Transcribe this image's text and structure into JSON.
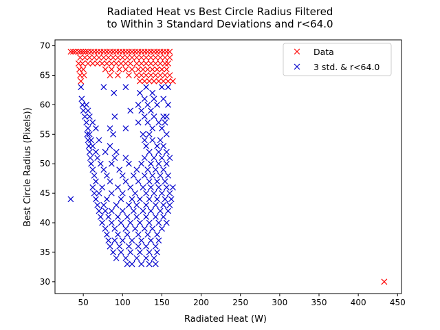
{
  "chart_data": {
    "type": "scatter",
    "title_lines": [
      "Radiated Heat vs Best Circle Radius Filtered",
      "to Within 3 Standard Deviations and r<64.0"
    ],
    "xlabel": "Radiated Heat (W)",
    "ylabel": "Best Circle Radius (Pixels))",
    "xlim": [
      14,
      455
    ],
    "ylim": [
      28,
      71
    ],
    "xticks": [
      50,
      100,
      150,
      200,
      250,
      300,
      350,
      400,
      450
    ],
    "yticks": [
      30,
      35,
      40,
      45,
      50,
      55,
      60,
      65,
      70
    ],
    "grid": false,
    "legend_position": "top-right",
    "marker": "x",
    "series": [
      {
        "name": "Data",
        "color": "#ff0000",
        "points": [
          [
            34,
            69
          ],
          [
            37,
            69
          ],
          [
            40,
            69
          ],
          [
            44,
            69
          ],
          [
            47,
            69
          ],
          [
            50,
            69
          ],
          [
            53,
            69
          ],
          [
            56,
            69
          ],
          [
            60,
            69
          ],
          [
            64,
            69
          ],
          [
            68,
            69
          ],
          [
            72,
            69
          ],
          [
            76,
            69
          ],
          [
            80,
            69
          ],
          [
            84,
            69
          ],
          [
            88,
            69
          ],
          [
            92,
            69
          ],
          [
            96,
            69
          ],
          [
            100,
            69
          ],
          [
            104,
            69
          ],
          [
            108,
            69
          ],
          [
            112,
            69
          ],
          [
            116,
            69
          ],
          [
            120,
            69
          ],
          [
            124,
            69
          ],
          [
            128,
            69
          ],
          [
            132,
            69
          ],
          [
            136,
            69
          ],
          [
            140,
            69
          ],
          [
            144,
            69
          ],
          [
            148,
            69
          ],
          [
            152,
            69
          ],
          [
            156,
            69
          ],
          [
            160,
            69
          ],
          [
            46,
            68
          ],
          [
            52,
            68
          ],
          [
            58,
            68
          ],
          [
            64,
            68
          ],
          [
            70,
            68
          ],
          [
            76,
            68
          ],
          [
            82,
            68
          ],
          [
            88,
            68
          ],
          [
            94,
            68
          ],
          [
            100,
            68
          ],
          [
            106,
            68
          ],
          [
            112,
            68
          ],
          [
            118,
            68
          ],
          [
            124,
            68
          ],
          [
            130,
            68
          ],
          [
            136,
            68
          ],
          [
            142,
            68
          ],
          [
            148,
            68
          ],
          [
            154,
            68
          ],
          [
            160,
            68
          ],
          [
            44,
            67
          ],
          [
            49,
            67
          ],
          [
            56,
            67
          ],
          [
            62,
            67
          ],
          [
            68,
            67
          ],
          [
            74,
            67
          ],
          [
            80,
            67
          ],
          [
            86,
            67
          ],
          [
            92,
            67
          ],
          [
            98,
            67
          ],
          [
            104,
            67
          ],
          [
            110,
            67
          ],
          [
            118,
            67
          ],
          [
            124,
            67
          ],
          [
            130,
            67
          ],
          [
            136,
            67
          ],
          [
            142,
            67
          ],
          [
            148,
            67
          ],
          [
            154,
            67
          ],
          [
            158,
            67
          ],
          [
            45,
            66
          ],
          [
            50,
            66
          ],
          [
            78,
            66
          ],
          [
            86,
            66
          ],
          [
            96,
            66
          ],
          [
            104,
            66
          ],
          [
            112,
            66
          ],
          [
            120,
            66
          ],
          [
            126,
            66
          ],
          [
            132,
            66
          ],
          [
            138,
            66
          ],
          [
            144,
            66
          ],
          [
            150,
            66
          ],
          [
            156,
            66
          ],
          [
            46,
            65
          ],
          [
            51,
            65
          ],
          [
            84,
            65
          ],
          [
            94,
            65
          ],
          [
            108,
            65
          ],
          [
            118,
            65
          ],
          [
            124,
            65
          ],
          [
            130,
            65
          ],
          [
            136,
            65
          ],
          [
            142,
            65
          ],
          [
            148,
            65
          ],
          [
            154,
            65
          ],
          [
            160,
            65
          ],
          [
            47,
            64
          ],
          [
            122,
            64
          ],
          [
            128,
            64
          ],
          [
            134,
            64
          ],
          [
            140,
            64
          ],
          [
            146,
            64
          ],
          [
            152,
            64
          ],
          [
            158,
            64
          ],
          [
            164,
            64
          ],
          [
            433,
            30
          ]
        ]
      },
      {
        "name": "3 std. & r<64.0",
        "color": "#0000cc",
        "points": [
          [
            47,
            63
          ],
          [
            76,
            63
          ],
          [
            104,
            63
          ],
          [
            130,
            63
          ],
          [
            150,
            63
          ],
          [
            158,
            63
          ],
          [
            122,
            62
          ],
          [
            138,
            62
          ],
          [
            89,
            62
          ],
          [
            48,
            61
          ],
          [
            128,
            61
          ],
          [
            140,
            61
          ],
          [
            152,
            61
          ],
          [
            49,
            60
          ],
          [
            54,
            60
          ],
          [
            120,
            60
          ],
          [
            132,
            60
          ],
          [
            144,
            60
          ],
          [
            158,
            60
          ],
          [
            50,
            59
          ],
          [
            56,
            59
          ],
          [
            110,
            59
          ],
          [
            124,
            59
          ],
          [
            136,
            59
          ],
          [
            52,
            58
          ],
          [
            58,
            58
          ],
          [
            90,
            58
          ],
          [
            128,
            58
          ],
          [
            140,
            58
          ],
          [
            152,
            58
          ],
          [
            156,
            58
          ],
          [
            54,
            57
          ],
          [
            62,
            57
          ],
          [
            120,
            57
          ],
          [
            132,
            57
          ],
          [
            146,
            57
          ],
          [
            154,
            57
          ],
          [
            56,
            56
          ],
          [
            66,
            56
          ],
          [
            84,
            56
          ],
          [
            104,
            56
          ],
          [
            138,
            56
          ],
          [
            150,
            56
          ],
          [
            55,
            55
          ],
          [
            58,
            55
          ],
          [
            88,
            55
          ],
          [
            126,
            55
          ],
          [
            134,
            55
          ],
          [
            156,
            55
          ],
          [
            56,
            54
          ],
          [
            60,
            54
          ],
          [
            70,
            54
          ],
          [
            128,
            54
          ],
          [
            138,
            54
          ],
          [
            148,
            54
          ],
          [
            57,
            53
          ],
          [
            62,
            53
          ],
          [
            84,
            53
          ],
          [
            130,
            53
          ],
          [
            144,
            53
          ],
          [
            152,
            53
          ],
          [
            58,
            52
          ],
          [
            66,
            52
          ],
          [
            78,
            52
          ],
          [
            92,
            52
          ],
          [
            134,
            52
          ],
          [
            146,
            52
          ],
          [
            156,
            52
          ],
          [
            59,
            51
          ],
          [
            68,
            51
          ],
          [
            90,
            51
          ],
          [
            104,
            51
          ],
          [
            128,
            51
          ],
          [
            140,
            51
          ],
          [
            150,
            51
          ],
          [
            160,
            51
          ],
          [
            60,
            50
          ],
          [
            72,
            50
          ],
          [
            86,
            50
          ],
          [
            108,
            50
          ],
          [
            124,
            50
          ],
          [
            136,
            50
          ],
          [
            146,
            50
          ],
          [
            156,
            50
          ],
          [
            62,
            49
          ],
          [
            76,
            49
          ],
          [
            96,
            49
          ],
          [
            118,
            49
          ],
          [
            132,
            49
          ],
          [
            142,
            49
          ],
          [
            152,
            49
          ],
          [
            64,
            48
          ],
          [
            80,
            48
          ],
          [
            100,
            48
          ],
          [
            114,
            48
          ],
          [
            128,
            48
          ],
          [
            138,
            48
          ],
          [
            148,
            48
          ],
          [
            158,
            48
          ],
          [
            66,
            47
          ],
          [
            84,
            47
          ],
          [
            104,
            47
          ],
          [
            120,
            47
          ],
          [
            134,
            47
          ],
          [
            144,
            47
          ],
          [
            154,
            47
          ],
          [
            62,
            46
          ],
          [
            74,
            46
          ],
          [
            94,
            46
          ],
          [
            110,
            46
          ],
          [
            126,
            46
          ],
          [
            136,
            46
          ],
          [
            146,
            46
          ],
          [
            156,
            46
          ],
          [
            164,
            46
          ],
          [
            64,
            45
          ],
          [
            70,
            45
          ],
          [
            86,
            45
          ],
          [
            100,
            45
          ],
          [
            116,
            45
          ],
          [
            130,
            45
          ],
          [
            140,
            45
          ],
          [
            150,
            45
          ],
          [
            160,
            45
          ],
          [
            66,
            44
          ],
          [
            80,
            44
          ],
          [
            98,
            44
          ],
          [
            112,
            44
          ],
          [
            122,
            44
          ],
          [
            134,
            44
          ],
          [
            144,
            44
          ],
          [
            154,
            44
          ],
          [
            162,
            44
          ],
          [
            34,
            44
          ],
          [
            68,
            43
          ],
          [
            76,
            43
          ],
          [
            92,
            43
          ],
          [
            108,
            43
          ],
          [
            118,
            43
          ],
          [
            130,
            43
          ],
          [
            142,
            43
          ],
          [
            152,
            43
          ],
          [
            160,
            43
          ],
          [
            70,
            42
          ],
          [
            78,
            42
          ],
          [
            86,
            42
          ],
          [
            100,
            42
          ],
          [
            114,
            42
          ],
          [
            126,
            42
          ],
          [
            136,
            42
          ],
          [
            148,
            42
          ],
          [
            158,
            42
          ],
          [
            72,
            41
          ],
          [
            82,
            41
          ],
          [
            94,
            41
          ],
          [
            106,
            41
          ],
          [
            118,
            41
          ],
          [
            130,
            41
          ],
          [
            142,
            41
          ],
          [
            152,
            41
          ],
          [
            74,
            40
          ],
          [
            86,
            40
          ],
          [
            98,
            40
          ],
          [
            110,
            40
          ],
          [
            122,
            40
          ],
          [
            134,
            40
          ],
          [
            146,
            40
          ],
          [
            156,
            40
          ],
          [
            78,
            39
          ],
          [
            90,
            39
          ],
          [
            104,
            39
          ],
          [
            116,
            39
          ],
          [
            128,
            39
          ],
          [
            138,
            39
          ],
          [
            150,
            39
          ],
          [
            80,
            38
          ],
          [
            94,
            38
          ],
          [
            106,
            38
          ],
          [
            120,
            38
          ],
          [
            132,
            38
          ],
          [
            144,
            38
          ],
          [
            82,
            37
          ],
          [
            90,
            37
          ],
          [
            100,
            37
          ],
          [
            112,
            37
          ],
          [
            124,
            37
          ],
          [
            136,
            37
          ],
          [
            146,
            37
          ],
          [
            84,
            36
          ],
          [
            96,
            36
          ],
          [
            108,
            36
          ],
          [
            120,
            36
          ],
          [
            130,
            36
          ],
          [
            142,
            36
          ],
          [
            88,
            35
          ],
          [
            98,
            35
          ],
          [
            110,
            35
          ],
          [
            122,
            35
          ],
          [
            134,
            35
          ],
          [
            144,
            35
          ],
          [
            92,
            34
          ],
          [
            104,
            34
          ],
          [
            118,
            34
          ],
          [
            130,
            34
          ],
          [
            140,
            34
          ],
          [
            106,
            33
          ],
          [
            112,
            33
          ],
          [
            124,
            33
          ],
          [
            134,
            33
          ],
          [
            142,
            33
          ]
        ]
      }
    ]
  }
}
